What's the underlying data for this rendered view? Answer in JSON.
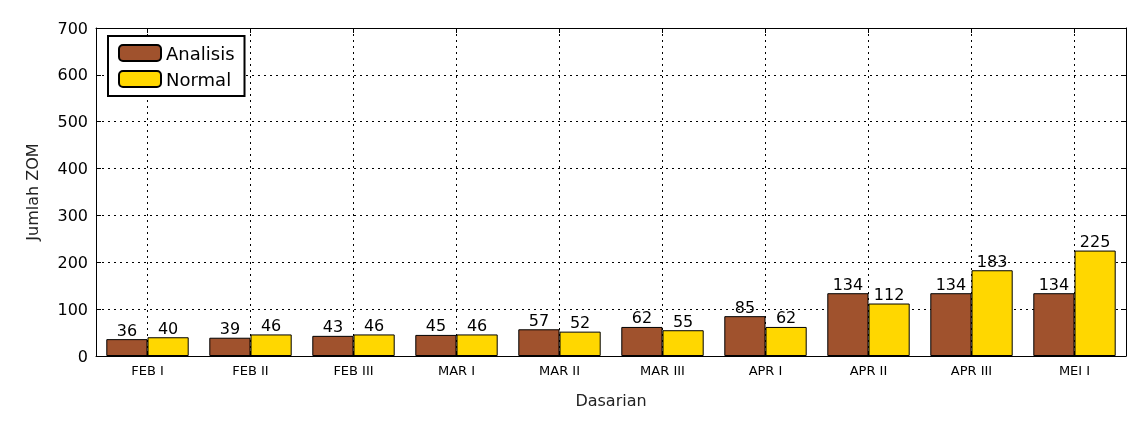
{
  "chart_data": {
    "type": "bar",
    "xlabel": "Dasarian",
    "ylabel": "Jumlah ZOM",
    "categories": [
      "FEB I",
      "FEB II",
      "FEB III",
      "MAR I",
      "MAR II",
      "MAR III",
      "APR I",
      "APR II",
      "APR III",
      "MEI I"
    ],
    "series": [
      {
        "name": "Analisis",
        "color": "#a0522d",
        "values": [
          36,
          39,
          43,
          45,
          57,
          62,
          85,
          134,
          134,
          134
        ]
      },
      {
        "name": "Normal",
        "color": "#ffd700",
        "values": [
          40,
          46,
          46,
          46,
          52,
          55,
          62,
          112,
          183,
          225
        ]
      }
    ],
    "ylim": [
      0,
      700
    ],
    "yticks": [
      0,
      100,
      200,
      300,
      400,
      500,
      600,
      700
    ],
    "grid": true,
    "legend": "top left",
    "data_labels": true
  }
}
